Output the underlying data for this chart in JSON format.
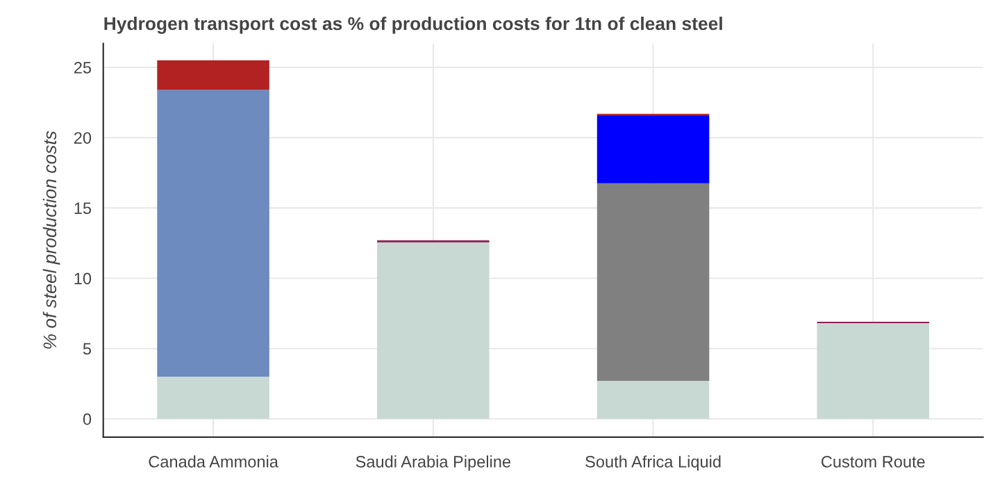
{
  "chart_data": {
    "type": "bar",
    "title": "Hydrogen transport cost as % of production costs for 1tn of clean steel",
    "ylabel": "% of steel production costs",
    "categories": [
      "Canada Ammonia",
      "Saudi Arabia Pipeline",
      "South Africa Liquid",
      "Custom Route"
    ],
    "stacked": true,
    "series": [
      {
        "color": "#c8d8d3",
        "values": [
          3.0,
          12.55,
          2.7,
          6.8
        ]
      },
      {
        "color": "#6e8bbf",
        "values": [
          20.4,
          0,
          0,
          0
        ]
      },
      {
        "color": "#808080",
        "values": [
          0,
          0,
          14.05,
          0
        ]
      },
      {
        "color": "#0000ff",
        "values": [
          0,
          0,
          4.85,
          0
        ]
      },
      {
        "color": "#b22222",
        "values": [
          2.1,
          0,
          0.1,
          0
        ]
      },
      {
        "color": "#8b2252",
        "values": [
          0,
          0.15,
          0,
          0.1
        ]
      }
    ],
    "ylim": [
      -1.3,
      26.7
    ],
    "yticks": [
      0,
      5,
      10,
      15,
      20,
      25
    ],
    "grid": true
  }
}
